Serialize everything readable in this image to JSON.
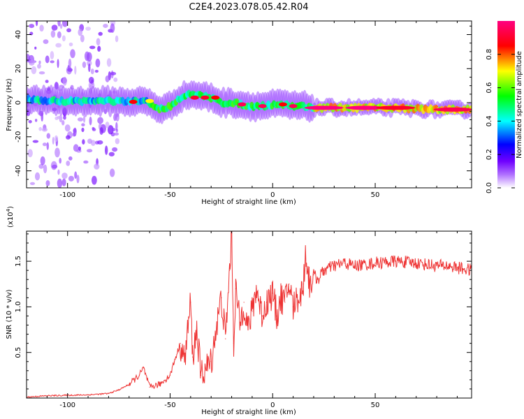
{
  "figure": {
    "title": "C2E4.2023.078.05.42.R04"
  },
  "chart_data": [
    {
      "type": "heatmap",
      "xlabel": "Height of straight line (km)",
      "ylabel": "Frequency (Hz)",
      "xlim": [
        -120,
        97
      ],
      "ylim": [
        -50,
        48
      ],
      "x_ticks": [
        -100,
        -50,
        0,
        50
      ],
      "x_tick_labels": [
        "-100",
        "-50",
        "0",
        "50"
      ],
      "y_ticks": [
        -40,
        -20,
        0,
        20,
        40
      ],
      "y_tick_labels": [
        "-40",
        "-20",
        "0",
        "20",
        "40"
      ],
      "grid": false,
      "center_line": [
        [
          -120,
          2
        ],
        [
          -110,
          1
        ],
        [
          -100,
          1
        ],
        [
          -90,
          1
        ],
        [
          -80,
          1
        ],
        [
          -70,
          0.5
        ],
        [
          -62,
          1
        ],
        [
          -55,
          -4
        ],
        [
          -50,
          -2
        ],
        [
          -45,
          3
        ],
        [
          -40,
          5
        ],
        [
          -35,
          4
        ],
        [
          -30,
          3
        ],
        [
          -25,
          0
        ],
        [
          -20,
          0
        ],
        [
          -15,
          -1
        ],
        [
          -10,
          -2
        ],
        [
          -5,
          -2
        ],
        [
          0,
          -1
        ],
        [
          5,
          -1
        ],
        [
          10,
          -2
        ],
        [
          15,
          -2
        ],
        [
          20,
          -3
        ],
        [
          40,
          -3
        ],
        [
          60,
          -3
        ],
        [
          80,
          -4
        ],
        [
          97,
          -4
        ]
      ],
      "peaks": [
        {
          "x": -68,
          "y": 0.5,
          "amplitude": 0.85
        },
        {
          "x": -60,
          "y": 1,
          "amplitude": 0.7
        },
        {
          "x": -38,
          "y": 3,
          "amplitude": 0.9
        },
        {
          "x": -33,
          "y": 3,
          "amplitude": 0.9
        },
        {
          "x": -28,
          "y": 3,
          "amplitude": 0.85
        },
        {
          "x": -15,
          "y": -1,
          "amplitude": 0.95
        },
        {
          "x": -5,
          "y": -2,
          "amplitude": 0.95
        },
        {
          "x": 5,
          "y": -1,
          "amplitude": 0.85
        },
        {
          "x": 10,
          "y": -2,
          "amplitude": 0.95
        },
        {
          "x": 25,
          "y": -3,
          "amplitude": 1.0
        },
        {
          "x": 45,
          "y": -3,
          "amplitude": 1.0
        },
        {
          "x": 60,
          "y": -3,
          "amplitude": 0.9
        },
        {
          "x": 88,
          "y": -4,
          "amplitude": 0.95
        }
      ],
      "colorbar": {
        "label": "Normalized spectral amplitude",
        "range": [
          0.0,
          1.0
        ],
        "ticks": [
          0.0,
          0.2,
          0.4,
          0.6,
          0.8
        ],
        "tick_labels": [
          "0.0",
          "0.2",
          "0.4",
          "0.6",
          "0.8"
        ],
        "colors": [
          "#ffffff",
          "#8000ff",
          "#0000ff",
          "#00ffff",
          "#00ff00",
          "#ffff00",
          "#ff0000",
          "#ff0080"
        ]
      }
    },
    {
      "type": "line",
      "xlabel": "Height of straight line (km)",
      "ylabel": "SNR (10 * v/v)",
      "y_multiplier": "(x10",
      "y_multiplier_exp": "4",
      "y_multiplier_close": ")",
      "xlim": [
        -120,
        97
      ],
      "ylim": [
        0,
        18300
      ],
      "x_ticks": [
        -100,
        -50,
        0,
        50
      ],
      "x_tick_labels": [
        "-100",
        "-50",
        "0",
        "50"
      ],
      "y_ticks": [
        5000,
        10000,
        15000
      ],
      "y_tick_labels": [
        "0.5",
        "1.0",
        "1.5"
      ],
      "grid": false,
      "series": [
        {
          "color": "#ee3333",
          "x": [
            -120,
            -110,
            -100,
            -90,
            -80,
            -75,
            -70,
            -65,
            -63,
            -60,
            -55,
            -50,
            -48,
            -45,
            -43,
            -40,
            -39,
            -37,
            -35,
            -30,
            -28,
            -25,
            -23,
            -21,
            -20,
            -19,
            -18,
            -16,
            -14,
            -12,
            -10,
            -8,
            -5,
            -3,
            0,
            2,
            4,
            6,
            8,
            10,
            12,
            14,
            15,
            16,
            18,
            20,
            22,
            25,
            30,
            35,
            40,
            50,
            60,
            70,
            80,
            85,
            90,
            97
          ],
          "y": [
            100,
            250,
            300,
            350,
            500,
            900,
            1500,
            2500,
            3300,
            1200,
            1500,
            2500,
            4000,
            6000,
            4000,
            10500,
            4500,
            7500,
            2500,
            4000,
            7000,
            11000,
            6500,
            14000,
            18300,
            6000,
            12000,
            8000,
            10500,
            7500,
            9500,
            12000,
            9000,
            10500,
            11500,
            9000,
            11000,
            10500,
            12500,
            10000,
            11000,
            11500,
            12500,
            16000,
            12500,
            13500,
            13000,
            14000,
            14500,
            14800,
            14500,
            14800,
            15000,
            14800,
            14500,
            14500,
            14300,
            14000
          ]
        }
      ]
    }
  ]
}
